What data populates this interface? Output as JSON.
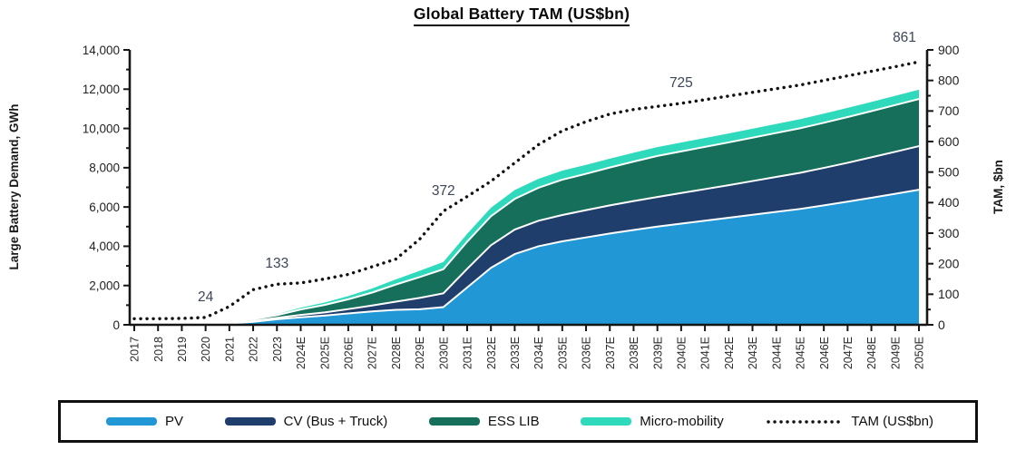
{
  "title": "Global Battery TAM (US$bn)",
  "chart_data": {
    "type": "area",
    "stacked": true,
    "grid": false,
    "legend_position": "bottom",
    "categories": [
      "2017",
      "2018",
      "2019",
      "2020",
      "2021",
      "2022",
      "2023",
      "2024E",
      "2025E",
      "2026E",
      "2027E",
      "2028E",
      "2029E",
      "2030E",
      "2031E",
      "2032E",
      "2033E",
      "2034E",
      "2035E",
      "2036E",
      "2037E",
      "2038E",
      "2039E",
      "2040E",
      "2041E",
      "2042E",
      "2043E",
      "2044E",
      "2045E",
      "2046E",
      "2047E",
      "2048E",
      "2049E",
      "2050E"
    ],
    "left_axis": {
      "label": "Large Battery Demand, GWh",
      "min": 0,
      "max": 14000,
      "major_step": 2000,
      "minor_step": 1000
    },
    "right_axis": {
      "label": "TAM, $bn",
      "min": 0,
      "max": 900,
      "major_step": 100,
      "minor_step": 50
    },
    "series": [
      {
        "name": "PV",
        "color": "#2197D5",
        "axis": "left",
        "values": [
          0,
          2,
          5,
          25,
          70,
          150,
          280,
          380,
          470,
          580,
          680,
          760,
          790,
          900,
          1900,
          2900,
          3600,
          4000,
          4250,
          4450,
          4650,
          4830,
          5000,
          5150,
          5300,
          5450,
          5600,
          5750,
          5900,
          6080,
          6270,
          6470,
          6670,
          6880
        ]
      },
      {
        "name": "CV (Bus + Truck)",
        "color": "#203E6B",
        "axis": "left",
        "values": [
          0,
          1,
          3,
          10,
          25,
          45,
          70,
          120,
          160,
          220,
          300,
          420,
          580,
          700,
          950,
          1150,
          1250,
          1300,
          1340,
          1390,
          1430,
          1470,
          1510,
          1560,
          1610,
          1660,
          1720,
          1780,
          1840,
          1910,
          1980,
          2060,
          2140,
          2220
        ]
      },
      {
        "name": "ESS LIB",
        "color": "#166F5B",
        "axis": "left",
        "values": [
          0,
          2,
          5,
          20,
          50,
          90,
          140,
          280,
          380,
          500,
          660,
          870,
          1060,
          1230,
          1380,
          1480,
          1560,
          1680,
          1800,
          1850,
          1930,
          2010,
          2090,
          2120,
          2150,
          2180,
          2210,
          2240,
          2270,
          2300,
          2330,
          2350,
          2380,
          2400
        ]
      },
      {
        "name": "Micro-mobility",
        "color": "#2ED9BC",
        "axis": "left",
        "values": [
          0,
          1,
          2,
          5,
          15,
          30,
          50,
          90,
          120,
          160,
          210,
          260,
          320,
          370,
          400,
          430,
          450,
          455,
          460,
          455,
          452,
          450,
          450,
          452,
          454,
          456,
          458,
          460,
          462,
          464,
          466,
          468,
          470,
          470
        ]
      }
    ],
    "line_series": {
      "name": "TAM (US$bn)",
      "color": "#111111",
      "style": "dotted",
      "axis": "right",
      "values": [
        20,
        20,
        21,
        24,
        60,
        115,
        133,
        137,
        150,
        165,
        190,
        215,
        280,
        372,
        420,
        470,
        530,
        590,
        635,
        665,
        690,
        705,
        715,
        725,
        737,
        749,
        761,
        773,
        785,
        800,
        815,
        830,
        845,
        861
      ]
    },
    "annotations": [
      {
        "year": "2020",
        "value": 24,
        "label": "24"
      },
      {
        "year": "2023",
        "value": 133,
        "label": "133"
      },
      {
        "year": "2030E",
        "value": 372,
        "label": "372"
      },
      {
        "year": "2040E",
        "value": 725,
        "label": "725"
      },
      {
        "year": "2050E",
        "value": 861,
        "label": "861"
      }
    ],
    "annotation_color": "#3d4658"
  }
}
